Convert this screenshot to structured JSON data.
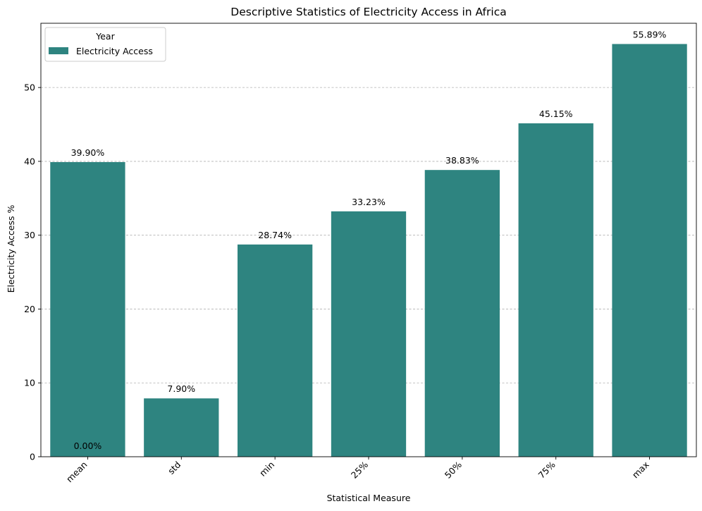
{
  "chart_data": {
    "type": "bar",
    "title": "Descriptive Statistics of Electricity Access in Africa",
    "xlabel": "Statistical Measure",
    "ylabel": "Electricity Access %",
    "categories": [
      "mean",
      "std",
      "min",
      "25%",
      "50%",
      "75%",
      "max"
    ],
    "series": [
      {
        "name": "Electricity Access",
        "values": [
          39.9,
          7.9,
          28.74,
          33.23,
          38.83,
          45.15,
          55.89
        ],
        "labels": [
          "39.90%",
          "7.90%",
          "28.74%",
          "33.23%",
          "38.83%",
          "45.15%",
          "55.89%"
        ]
      }
    ],
    "extra_annotation": {
      "category": "mean",
      "value": 0,
      "label": "0.00%"
    },
    "ylim": [
      0,
      58.7
    ],
    "yticks": [
      0,
      10,
      20,
      30,
      40,
      50
    ],
    "ytick_labels": [
      "0",
      "10",
      "20",
      "30",
      "40",
      "50"
    ],
    "grid": "y-dashed",
    "legend": {
      "title": "Year",
      "placement": "top-left"
    },
    "colors": {
      "bar": "#2e8480",
      "grid": "#b0b0b0",
      "axis": "#000000"
    }
  }
}
